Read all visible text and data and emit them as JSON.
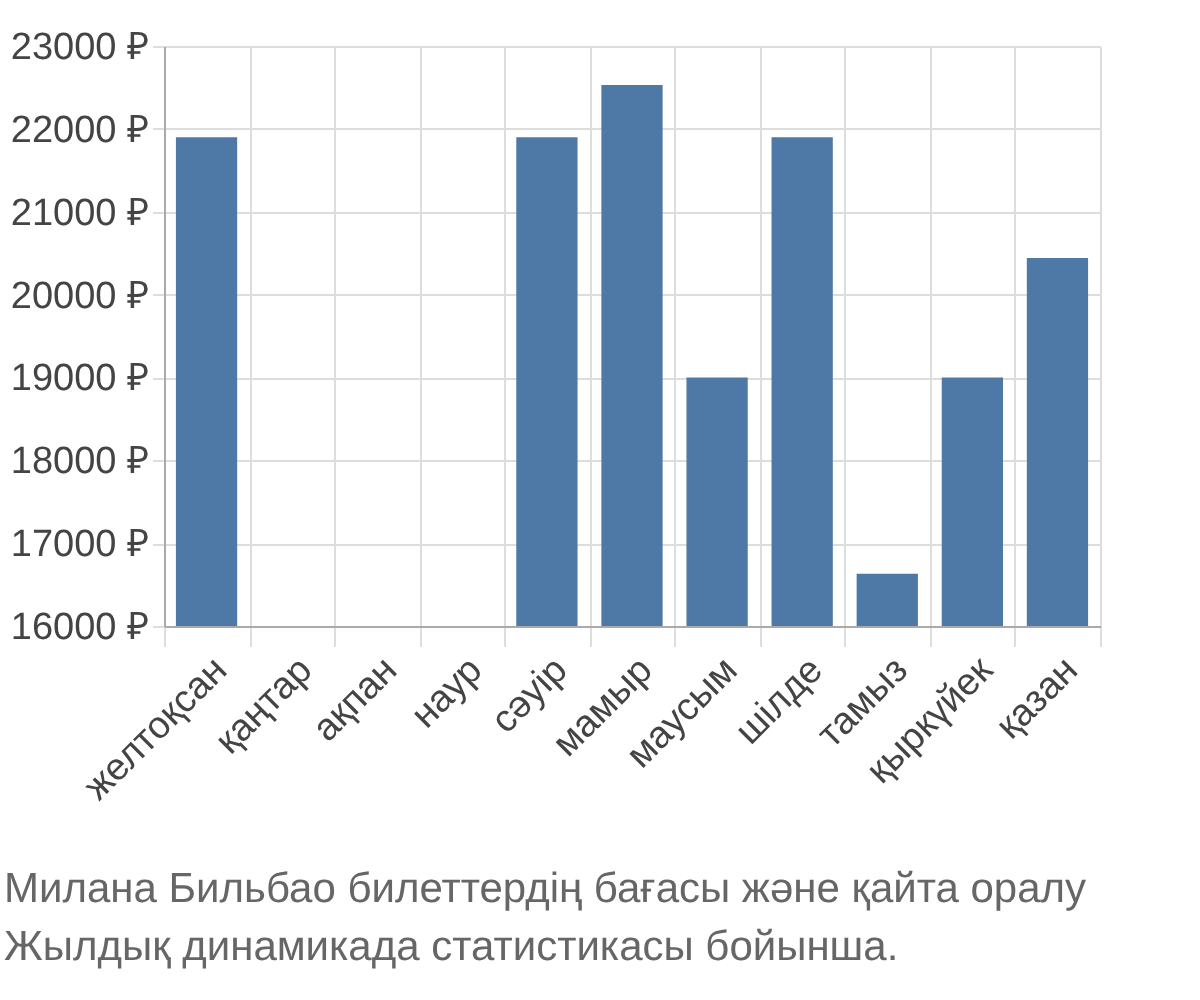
{
  "chart_data": {
    "type": "bar",
    "categories": [
      "желтоқсан",
      "қаңтар",
      "ақпан",
      "наур",
      "сәуір",
      "мамыр",
      "маусым",
      "шілде",
      "тамыз",
      "қыркүйек",
      "қазан"
    ],
    "values": [
      21900,
      null,
      null,
      null,
      21900,
      22530,
      19000,
      21900,
      16630,
      19000,
      20440
    ],
    "color": "#4e79a7",
    "ylim": [
      16000,
      23000
    ],
    "yticks": [
      {
        "value": 16000,
        "label": "16000 ₽"
      },
      {
        "value": 17000,
        "label": "17000 ₽"
      },
      {
        "value": 18000,
        "label": "18000 ₽"
      },
      {
        "value": 19000,
        "label": "19000 ₽"
      },
      {
        "value": 20000,
        "label": "20000 ₽"
      },
      {
        "value": 21000,
        "label": "21000 ₽"
      },
      {
        "value": 22000,
        "label": "22000 ₽"
      },
      {
        "value": 23000,
        "label": "23000 ₽"
      }
    ],
    "grid": true,
    "annotations": [
      "Милана Бильбао билеттердің бағасы және қайта оралу",
      "Жылдық динамикада статистикасы бойынша."
    ]
  }
}
